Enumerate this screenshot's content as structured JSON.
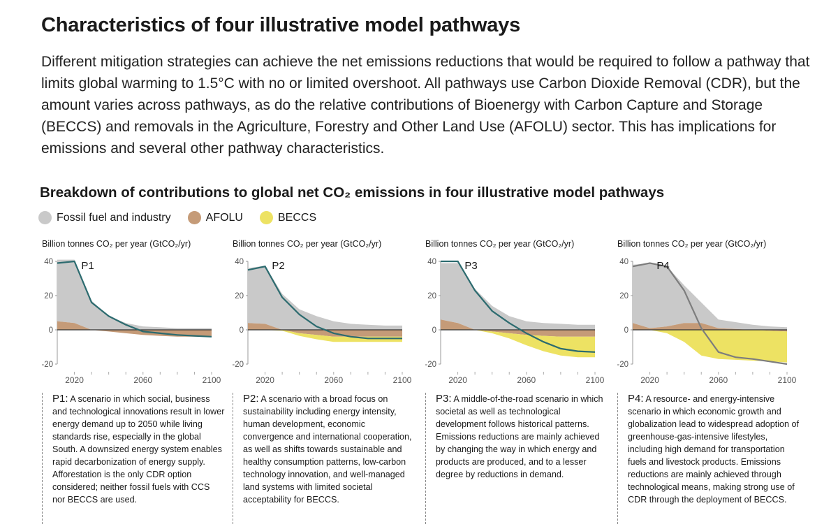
{
  "page": {
    "title": "Characteristics of four illustrative model pathways",
    "intro": "Different mitigation strategies can achieve the net emissions reductions that would be required to follow a pathway that limits global warming to 1.5°C with no or limited overshoot. All pathways use Carbon Dioxide Removal (CDR), but the amount varies across pathways, as do the relative contributions of Bioenergy with Carbon Capture and Storage (BECCS) and removals in the Agriculture, Forestry and Other Land Use (AFOLU) sector. This has implications for emissions and several other pathway characteristics.",
    "section_title": "Breakdown of contributions to global net CO₂ emissions in four illustrative model pathways"
  },
  "legend": [
    {
      "label": "Fossil fuel and industry",
      "color": "#c9c9c9"
    },
    {
      "label": "AFOLU",
      "color": "#c59b78"
    },
    {
      "label": "BECCS",
      "color": "#ede263"
    }
  ],
  "colors": {
    "line": "#2c6b6f",
    "p4_line": "#7d7d7d",
    "zero": "#333333"
  },
  "chart_data": [
    {
      "type": "area",
      "name": "P1",
      "ylabel": "Billion tonnes CO₂ per year (GtCO₂/yr)",
      "yticks": [
        40,
        20,
        0,
        -20
      ],
      "xticks": [
        2020,
        2060,
        2100
      ],
      "ylim": [
        -20,
        40
      ],
      "xlim": [
        2010,
        2100
      ],
      "x": [
        2010,
        2020,
        2030,
        2040,
        2050,
        2060,
        2070,
        2080,
        2090,
        2100
      ],
      "series": [
        {
          "name": "Fossil fuel and industry",
          "values": [
            36,
            37,
            17,
            8,
            4,
            2,
            1.5,
            1,
            1,
            1
          ]
        },
        {
          "name": "AFOLU",
          "values": [
            5,
            4,
            0,
            -1,
            -2,
            -3,
            -3.5,
            -4,
            -4,
            -4
          ]
        },
        {
          "name": "BECCS",
          "values": [
            0,
            0,
            0,
            0,
            0,
            0,
            0,
            0,
            0,
            0
          ]
        }
      ],
      "net": [
        39,
        40,
        16,
        8,
        3,
        -1,
        -2,
        -3,
        -3.5,
        -4
      ],
      "description_label": "P1:",
      "description": "A scenario in which social, business and technological innovations result in lower energy demand up to 2050 while living standards rise, especially in the global South. A downsized energy system enables rapid decarbonization of energy supply. Afforestation is the only CDR option considered; neither fossil fuels with CCS nor BECCS are used."
    },
    {
      "type": "area",
      "name": "P2",
      "ylabel": "Billion tonnes CO₂ per year (GtCO₂/yr)",
      "yticks": [
        40,
        20,
        0,
        -20
      ],
      "xticks": [
        2020,
        2060,
        2100
      ],
      "ylim": [
        -20,
        40
      ],
      "xlim": [
        2010,
        2100
      ],
      "x": [
        2010,
        2020,
        2030,
        2040,
        2050,
        2060,
        2070,
        2080,
        2090,
        2100
      ],
      "series": [
        {
          "name": "Fossil fuel and industry",
          "values": [
            32,
            34,
            21,
            12,
            8,
            5,
            3.5,
            3,
            2.5,
            2.5
          ]
        },
        {
          "name": "AFOLU",
          "values": [
            4,
            3.5,
            0,
            -2,
            -3,
            -4,
            -4,
            -4,
            -4,
            -4
          ]
        },
        {
          "name": "BECCS",
          "values": [
            0,
            0,
            -0.5,
            -1.5,
            -2.5,
            -3,
            -3,
            -3,
            -3,
            -3
          ]
        }
      ],
      "net": [
        35,
        37,
        19,
        9,
        2,
        -2,
        -4,
        -5,
        -5,
        -5
      ],
      "description_label": "P2:",
      "description": "A scenario with a broad focus on sustainability including energy intensity, human development, economic convergence and international cooperation, as well as shifts towards sustainable and healthy consumption patterns, low-carbon technology innovation, and well-managed land systems with limited societal acceptability for BECCS."
    },
    {
      "type": "area",
      "name": "P3",
      "ylabel": "Billion tonnes CO₂ per year (GtCO₂/yr)",
      "yticks": [
        40,
        20,
        0,
        -20
      ],
      "xticks": [
        2020,
        2060,
        2100
      ],
      "ylim": [
        -20,
        40
      ],
      "xlim": [
        2010,
        2100
      ],
      "x": [
        2010,
        2020,
        2030,
        2040,
        2050,
        2060,
        2070,
        2080,
        2090,
        2100
      ],
      "series": [
        {
          "name": "Fossil fuel and industry",
          "values": [
            33,
            35,
            24,
            14,
            8,
            5,
            4,
            3.5,
            3,
            3
          ]
        },
        {
          "name": "AFOLU",
          "values": [
            6,
            4,
            0,
            -1,
            -2,
            -3,
            -3.5,
            -4,
            -4,
            -4
          ]
        },
        {
          "name": "BECCS",
          "values": [
            0,
            0,
            0,
            -1,
            -3,
            -6,
            -9,
            -11,
            -12,
            -12
          ]
        }
      ],
      "net": [
        40,
        40,
        23,
        11,
        4,
        -2,
        -7,
        -11,
        -12.5,
        -13
      ],
      "description_label": "P3:",
      "description": "A middle-of-the-road scenario in which societal as well as technological development follows historical patterns. Emissions reductions are mainly achieved by changing the way in which energy and products are produced, and to a lesser degree by reductions in demand."
    },
    {
      "type": "area",
      "name": "P4",
      "ylabel": "Billion tonnes CO₂ per year (GtCO₂/yr)",
      "yticks": [
        40,
        20,
        0,
        -20
      ],
      "xticks": [
        2020,
        2060,
        2100
      ],
      "ylim": [
        -20,
        40
      ],
      "xlim": [
        2010,
        2100
      ],
      "x": [
        2010,
        2020,
        2030,
        2040,
        2050,
        2060,
        2070,
        2080,
        2090,
        2100
      ],
      "series": [
        {
          "name": "Fossil fuel and industry",
          "values": [
            34,
            38,
            35,
            22,
            12,
            5,
            4,
            3,
            2,
            1.5
          ]
        },
        {
          "name": "AFOLU",
          "values": [
            4,
            1,
            2,
            4,
            4,
            1,
            0.5,
            0,
            -0.5,
            -1
          ]
        },
        {
          "name": "BECCS",
          "values": [
            0,
            0,
            -2,
            -7,
            -15,
            -17,
            -17.5,
            -18,
            -18,
            -18
          ]
        }
      ],
      "net": [
        37,
        39,
        37,
        23,
        1,
        -13,
        -16,
        -17,
        -18.5,
        -20
      ],
      "description_label": "P4:",
      "description": "A resource- and energy-intensive scenario in which economic growth and globalization lead to widespread adoption of greenhouse-gas-intensive lifestyles, including high demand for transportation fuels and livestock products. Emissions reductions are mainly achieved through technological means, making strong use of CDR through the deployment of BECCS."
    }
  ]
}
